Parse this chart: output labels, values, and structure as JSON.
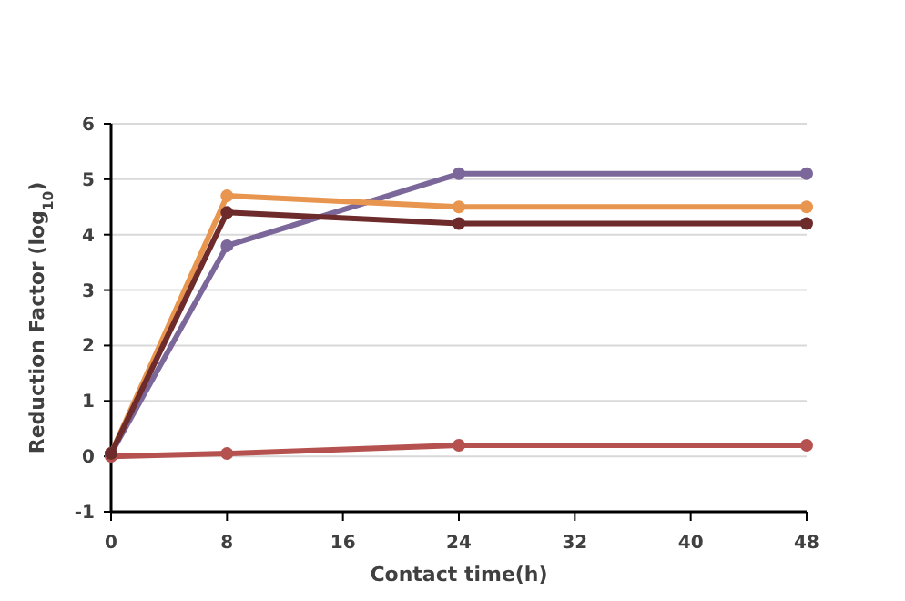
{
  "chart_data": {
    "type": "line",
    "xlabel": "Contact time(h)",
    "ylabel": "Reduction Factor (log$_{10}$)",
    "x": [
      0,
      8,
      24,
      48
    ],
    "xlim": [
      0,
      48
    ],
    "xticks": [
      0,
      8,
      16,
      24,
      32,
      40,
      48
    ],
    "ylim": [
      -1,
      6
    ],
    "yticks": [
      -1,
      0,
      1,
      2,
      3,
      4,
      5,
      6
    ],
    "grid": "y",
    "marker": "circle",
    "line_style": "solid",
    "series": [
      {
        "color": "#b5524f",
        "values": [
          0,
          0.05,
          0.2,
          0.2
        ]
      },
      {
        "color": "#7b679a",
        "values": [
          0.05,
          3.8,
          5.1,
          5.1
        ]
      },
      {
        "color": "#e8964f",
        "values": [
          0.05,
          4.7,
          4.5,
          4.5
        ]
      },
      {
        "color": "#6e2b2b",
        "values": [
          0.05,
          4.4,
          4.2,
          4.2
        ]
      }
    ]
  }
}
